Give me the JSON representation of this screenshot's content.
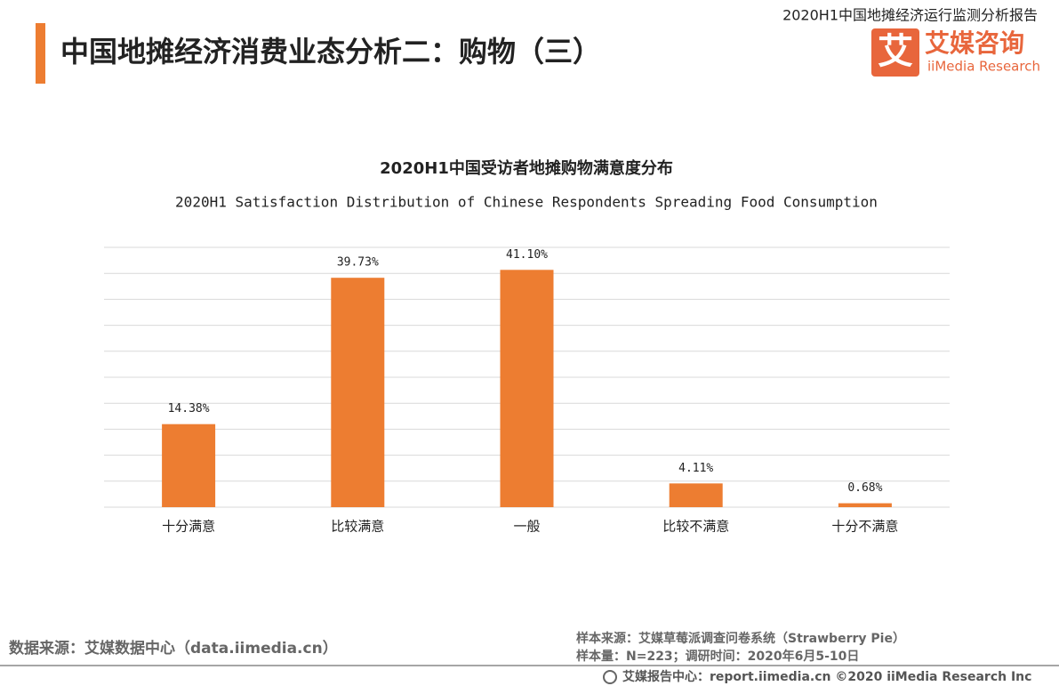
{
  "header": {
    "title": "中国地摊经济消费业态分析二：购物（三）",
    "report_name": "2020H1中国地摊经济运行监测分析报告",
    "logo_icon": "艾",
    "logo_cn": "艾媒咨询",
    "logo_en": "iiMedia Research"
  },
  "chart_data": {
    "type": "bar",
    "title": "2020H1中国受访者地摊购物满意度分布",
    "subtitle": "2020H1 Satisfaction Distribution of Chinese Respondents Spreading Food Consumption",
    "categories": [
      "十分满意",
      "比较满意",
      "一般",
      "比较不满意",
      "十分不满意"
    ],
    "values": [
      14.38,
      39.73,
      41.1,
      4.11,
      0.68
    ],
    "value_labels": [
      "14.38%",
      "39.73%",
      "41.10%",
      "4.11%",
      "0.68%"
    ],
    "color": "#ed7d31",
    "ylim": [
      0,
      45
    ],
    "yticks": [
      0,
      4.5,
      9,
      13.5,
      18,
      22.5,
      27,
      31.5,
      36,
      40.5,
      45
    ],
    "grid": true
  },
  "footer": {
    "data_source": "数据来源：艾媒数据中心（data.iimedia.cn）",
    "sample_source": "样本来源：艾媒草莓派调查问卷系统（Strawberry Pie）",
    "sample_size": "样本量：N=223；调研时间：2020年6月5-10日",
    "report_center": "艾媒报告中心：report.iimedia.cn  ©2020  iiMedia Research  Inc"
  }
}
